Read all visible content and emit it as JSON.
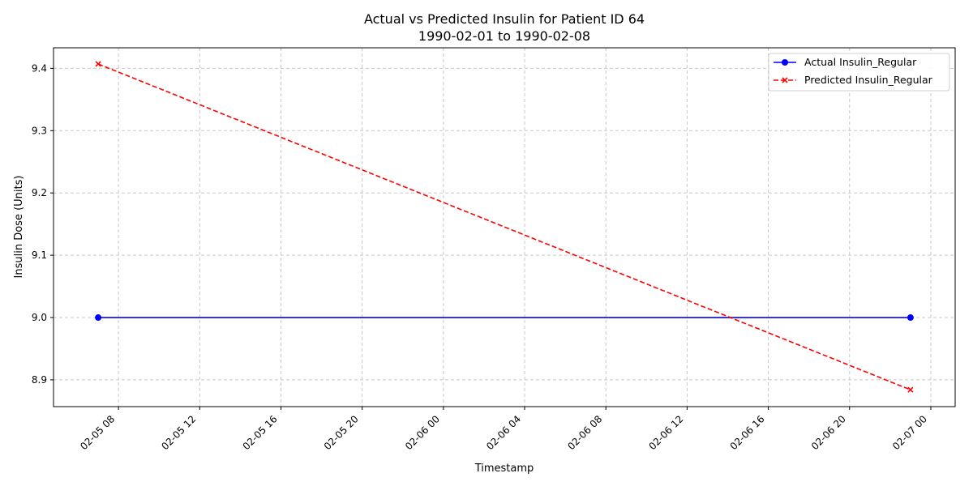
{
  "chart_data": {
    "type": "line",
    "title_line1": "Actual vs Predicted Insulin for Patient ID 64",
    "title_line2": "1990-02-01 to 1990-02-08",
    "xlabel": "Timestamp",
    "ylabel": "Insulin Dose (Units)",
    "x_unit": "datetime",
    "xlim": [
      "1990-02-05 04:48",
      "1990-02-07 01:12"
    ],
    "ylim": [
      8.857,
      9.433
    ],
    "x_ticks": [
      {
        "value": "1990-02-05 08:00",
        "label": "02-05 08"
      },
      {
        "value": "1990-02-05 12:00",
        "label": "02-05 12"
      },
      {
        "value": "1990-02-05 16:00",
        "label": "02-05 16"
      },
      {
        "value": "1990-02-05 20:00",
        "label": "02-05 20"
      },
      {
        "value": "1990-02-06 00:00",
        "label": "02-06 00"
      },
      {
        "value": "1990-02-06 04:00",
        "label": "02-06 04"
      },
      {
        "value": "1990-02-06 08:00",
        "label": "02-06 08"
      },
      {
        "value": "1990-02-06 12:00",
        "label": "02-06 12"
      },
      {
        "value": "1990-02-06 16:00",
        "label": "02-06 16"
      },
      {
        "value": "1990-02-06 20:00",
        "label": "02-06 20"
      },
      {
        "value": "1990-02-07 00:00",
        "label": "02-07 00"
      }
    ],
    "y_ticks": [
      {
        "value": 8.9,
        "label": "8.9"
      },
      {
        "value": 9.0,
        "label": "9.0"
      },
      {
        "value": 9.1,
        "label": "9.1"
      },
      {
        "value": 9.2,
        "label": "9.2"
      },
      {
        "value": 9.3,
        "label": "9.3"
      },
      {
        "value": 9.4,
        "label": "9.4"
      }
    ],
    "grid": true,
    "legend_position": "top-right",
    "series": [
      {
        "name": "Actual Insulin_Regular",
        "color": "#0000ff",
        "line_style": "solid",
        "marker": "circle",
        "points": [
          {
            "x": "1990-02-05 07:00",
            "y": 9.0
          },
          {
            "x": "1990-02-06 23:00",
            "y": 9.0
          }
        ]
      },
      {
        "name": "Predicted Insulin_Regular",
        "color": "#ff0000",
        "line_style": "dashed",
        "marker": "x",
        "points": [
          {
            "x": "1990-02-05 07:00",
            "y": 9.407
          },
          {
            "x": "1990-02-06 23:00",
            "y": 8.884
          }
        ]
      }
    ]
  }
}
